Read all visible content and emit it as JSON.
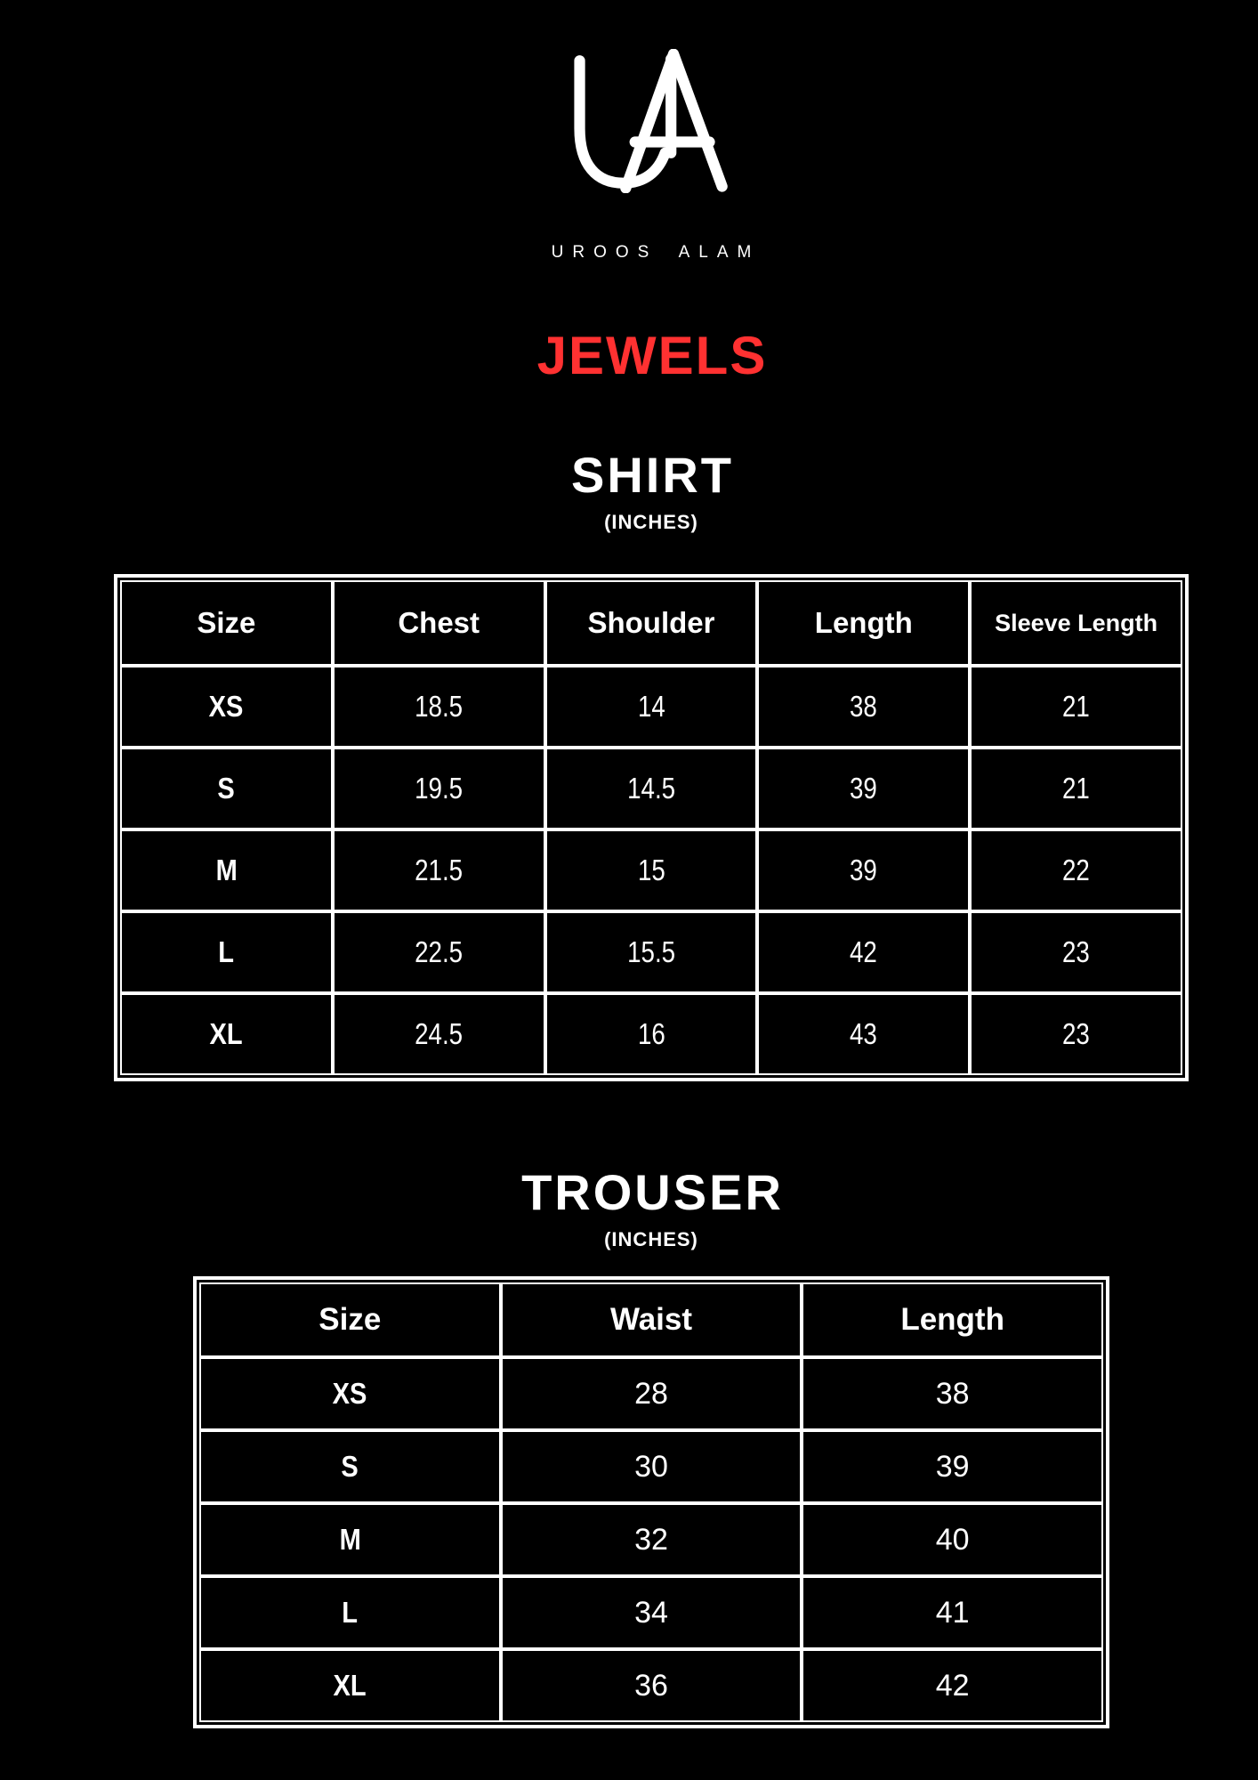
{
  "brand": {
    "logo_monogram": "UA",
    "name": "UROOS ALAM",
    "collection": "JEWELS"
  },
  "colors": {
    "background": "#000000",
    "text": "#ffffff",
    "accent_red": "#ff3131",
    "table_border": "#ffffff"
  },
  "shirt_chart": {
    "title": "SHIRT",
    "unit_label": "(INCHES)",
    "columns": [
      "Size",
      "Chest",
      "Shoulder",
      "Length",
      "Sleeve Length"
    ],
    "rows": [
      [
        "XS",
        "18.5",
        "14",
        "38",
        "21"
      ],
      [
        "S",
        "19.5",
        "14.5",
        "39",
        "21"
      ],
      [
        "M",
        "21.5",
        "15",
        "39",
        "22"
      ],
      [
        "L",
        "22.5",
        "15.5",
        "42",
        "23"
      ],
      [
        "XL",
        "24.5",
        "16",
        "43",
        "23"
      ]
    ]
  },
  "trouser_chart": {
    "title": "TROUSER",
    "unit_label": "(INCHES)",
    "columns": [
      "Size",
      "Waist",
      "Length"
    ],
    "rows": [
      [
        "XS",
        "28",
        "38"
      ],
      [
        "S",
        "30",
        "39"
      ],
      [
        "M",
        "32",
        "40"
      ],
      [
        "L",
        "34",
        "41"
      ],
      [
        "XL",
        "36",
        "42"
      ]
    ]
  }
}
